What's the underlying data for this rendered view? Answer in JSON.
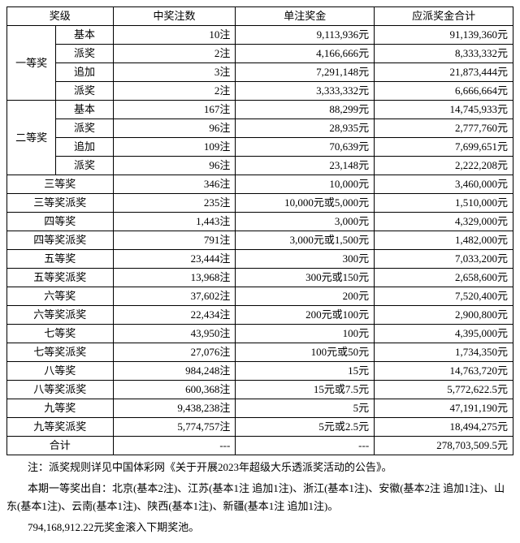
{
  "headers": {
    "level": "奖级",
    "count": "中奖注数",
    "unit": "单注奖金",
    "total": "应派奖金合计"
  },
  "group1": {
    "name": "一等奖",
    "rows": [
      {
        "sub": "基本",
        "count": "10注",
        "unit": "9,113,936元",
        "total": "91,139,360元"
      },
      {
        "sub": "派奖",
        "count": "2注",
        "unit": "4,166,666元",
        "total": "8,333,332元"
      },
      {
        "sub": "追加",
        "count": "3注",
        "unit": "7,291,148元",
        "total": "21,873,444元"
      },
      {
        "sub": "派奖",
        "count": "2注",
        "unit": "3,333,332元",
        "total": "6,666,664元"
      }
    ]
  },
  "group2": {
    "name": "二等奖",
    "rows": [
      {
        "sub": "基本",
        "count": "167注",
        "unit": "88,299元",
        "total": "14,745,933元"
      },
      {
        "sub": "派奖",
        "count": "96注",
        "unit": "28,935元",
        "total": "2,777,760元"
      },
      {
        "sub": "追加",
        "count": "109注",
        "unit": "70,639元",
        "total": "7,699,651元"
      },
      {
        "sub": "派奖",
        "count": "96注",
        "unit": "23,148元",
        "total": "2,222,208元"
      }
    ]
  },
  "singles": [
    {
      "name": "三等奖",
      "count": "346注",
      "unit": "10,000元",
      "total": "3,460,000元"
    },
    {
      "name": "三等奖派奖",
      "count": "235注",
      "unit": "10,000元或5,000元",
      "total": "1,510,000元"
    },
    {
      "name": "四等奖",
      "count": "1,443注",
      "unit": "3,000元",
      "total": "4,329,000元"
    },
    {
      "name": "四等奖派奖",
      "count": "791注",
      "unit": "3,000元或1,500元",
      "total": "1,482,000元"
    },
    {
      "name": "五等奖",
      "count": "23,444注",
      "unit": "300元",
      "total": "7,033,200元"
    },
    {
      "name": "五等奖派奖",
      "count": "13,968注",
      "unit": "300元或150元",
      "total": "2,658,600元"
    },
    {
      "name": "六等奖",
      "count": "37,602注",
      "unit": "200元",
      "total": "7,520,400元"
    },
    {
      "name": "六等奖派奖",
      "count": "22,434注",
      "unit": "200元或100元",
      "total": "2,900,800元"
    },
    {
      "name": "七等奖",
      "count": "43,950注",
      "unit": "100元",
      "total": "4,395,000元"
    },
    {
      "name": "七等奖派奖",
      "count": "27,076注",
      "unit": "100元或50元",
      "total": "1,734,350元"
    },
    {
      "name": "八等奖",
      "count": "984,248注",
      "unit": "15元",
      "total": "14,763,720元"
    },
    {
      "name": "八等奖派奖",
      "count": "600,368注",
      "unit": "15元或7.5元",
      "total": "5,772,622.5元"
    },
    {
      "name": "九等奖",
      "count": "9,438,238注",
      "unit": "5元",
      "total": "47,191,190元"
    },
    {
      "name": "九等奖派奖",
      "count": "5,774,757注",
      "unit": "5元或2.5元",
      "total": "18,494,275元"
    },
    {
      "name": "合计",
      "count": "---",
      "unit": "---",
      "total": "278,703,509.5元"
    }
  ],
  "notes": {
    "n1": "注：派奖规则详见中国体彩网《关于开展2023年超级大乐透派奖活动的公告》。",
    "n2": "本期一等奖出自：北京(基本2注)、江苏(基本1注 追加1注)、浙江(基本1注)、安徽(基本2注 追加1注)、山东(基本1注)、云南(基本1注)、陕西(基本1注)、新疆(基本1注 追加1注)。",
    "n3": "794,168,912.22元奖金滚入下期奖池。"
  }
}
